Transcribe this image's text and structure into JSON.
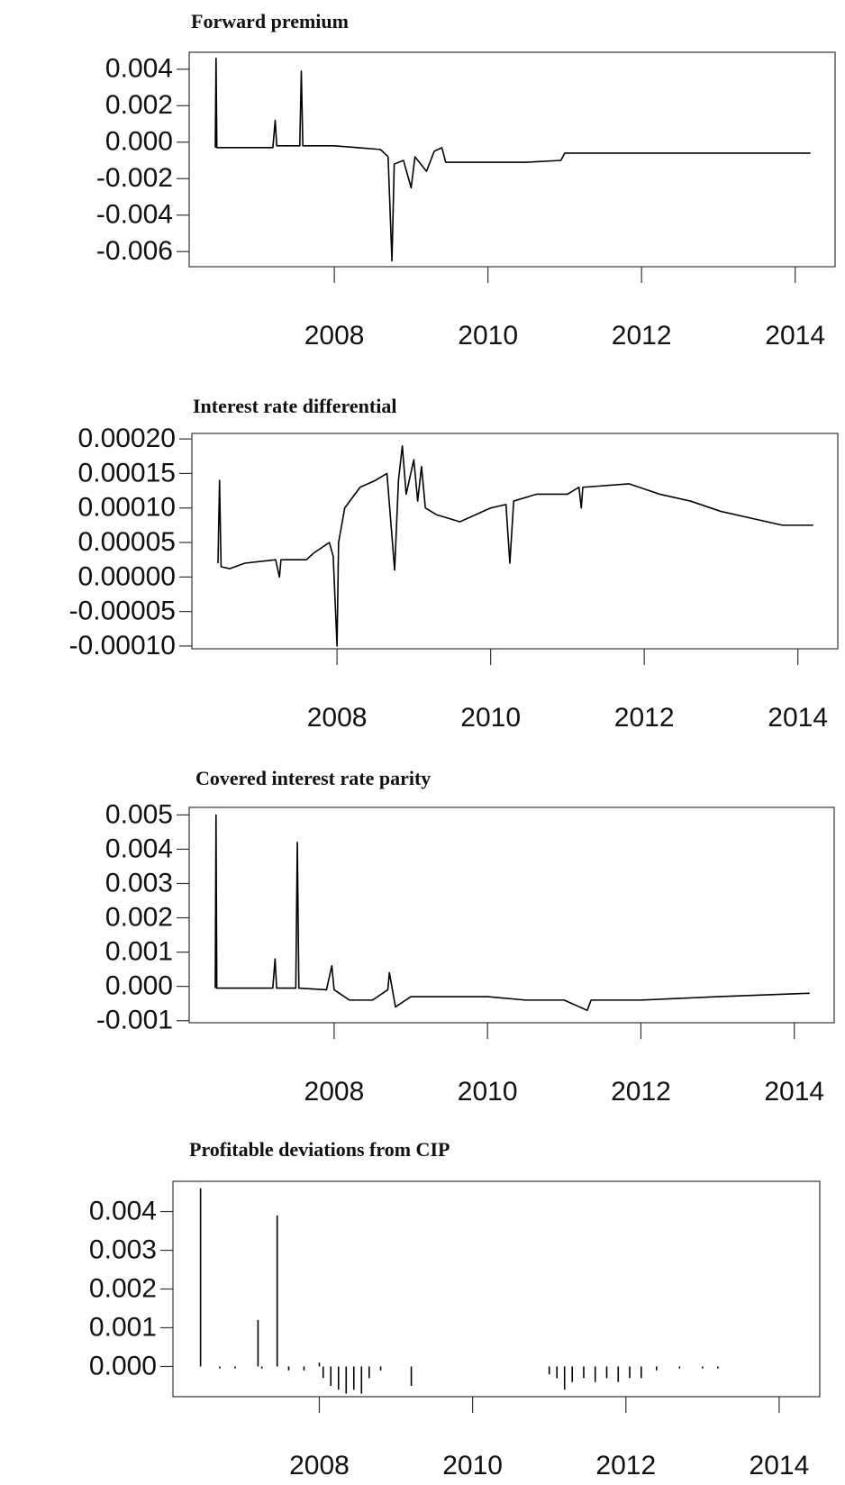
{
  "chart_data": [
    {
      "type": "line",
      "title": "Forward premium",
      "color": "#000000",
      "x": [
        2006.45,
        2006.46,
        2006.47,
        2006.8,
        2007.2,
        2007.23,
        2007.25,
        2007.55,
        2007.57,
        2007.59,
        2008.0,
        2008.3,
        2008.6,
        2008.7,
        2008.75,
        2008.78,
        2008.9,
        2009.0,
        2009.05,
        2009.2,
        2009.3,
        2009.4,
        2009.45,
        2010.0,
        2010.5,
        2010.95,
        2011.0,
        2012.0,
        2013.0,
        2014.2
      ],
      "values": [
        -0.0003,
        0.0046,
        -0.0003,
        -0.0003,
        -0.0003,
        0.0012,
        -0.0002,
        -0.0002,
        0.0039,
        -0.0002,
        -0.0002,
        -0.0003,
        -0.0004,
        -0.0008,
        -0.0065,
        -0.0012,
        -0.001,
        -0.0025,
        -0.0008,
        -0.0016,
        -0.0005,
        -0.0003,
        -0.0011,
        -0.0011,
        -0.0011,
        -0.001,
        -0.0006,
        -0.0006,
        -0.0006,
        -0.0006
      ],
      "xlim": [
        2006.11,
        2014.52
      ],
      "xticks": [
        2008,
        2010,
        2012,
        2014
      ],
      "ylim": [
        -0.00683,
        0.00493
      ],
      "yticks": [
        {
          "value": -0.006,
          "label": "-0.006"
        },
        {
          "value": -0.004,
          "label": "-0.004"
        },
        {
          "value": -0.002,
          "label": "-0.002"
        },
        {
          "value": 0,
          "label": "0.000"
        },
        0.002,
        0.004
      ]
    },
    {
      "type": "line",
      "title": "Interest rate differential",
      "color": "#000000",
      "x": [
        2006.45,
        2006.47,
        2006.49,
        2006.6,
        2006.8,
        2007.2,
        2007.25,
        2007.27,
        2007.6,
        2007.7,
        2007.9,
        2007.95,
        2008.0,
        2008.02,
        2008.1,
        2008.3,
        2008.5,
        2008.65,
        2008.7,
        2008.75,
        2008.8,
        2008.85,
        2008.9,
        2009.0,
        2009.05,
        2009.1,
        2009.15,
        2009.3,
        2009.6,
        2009.8,
        2010.0,
        2010.2,
        2010.25,
        2010.3,
        2010.6,
        2011.0,
        2011.15,
        2011.18,
        2011.2,
        2011.8,
        2012.2,
        2012.6,
        2013.0,
        2013.4,
        2013.8,
        2014.2
      ],
      "values": [
        2e-05,
        0.00014,
        1.5e-05,
        1.2e-05,
        2e-05,
        2.5e-05,
        0,
        2.5e-05,
        2.5e-05,
        3.5e-05,
        5e-05,
        3e-05,
        -0.0001,
        5e-05,
        0.0001,
        0.00013,
        0.00014,
        0.00015,
        8e-05,
        1e-05,
        0.00014,
        0.00019,
        0.00012,
        0.00017,
        0.00011,
        0.00016,
        0.0001,
        9e-05,
        8e-05,
        9e-05,
        0.0001,
        0.000105,
        2e-05,
        0.00011,
        0.00012,
        0.00012,
        0.00013,
        0.0001,
        0.00013,
        0.000135,
        0.00012,
        0.00011,
        9.5e-05,
        8.5e-05,
        7.5e-05,
        7.5e-05
      ],
      "xlim": [
        2006.11,
        2014.52
      ],
      "xticks": [
        2008,
        2010,
        2012,
        2014
      ],
      "ylim": [
        -0.000104,
        0.000208
      ],
      "yticks": [
        {
          "value": -0.0001,
          "label": "-0.00010"
        },
        -5e-05,
        {
          "value": 0,
          "label": "0.00000"
        },
        5e-05,
        {
          "value": 0.0001,
          "label": "0.00010"
        },
        0.00015,
        {
          "value": 0.0002,
          "label": "0.00020"
        }
      ]
    },
    {
      "type": "line",
      "title": "Covered interest rate parity",
      "color": "#000000",
      "x": [
        2006.45,
        2006.46,
        2006.47,
        2007.0,
        2007.2,
        2007.23,
        2007.25,
        2007.5,
        2007.52,
        2007.54,
        2007.9,
        2007.97,
        2008.0,
        2008.2,
        2008.5,
        2008.7,
        2008.72,
        2008.8,
        2009.0,
        2009.5,
        2010.0,
        2010.5,
        2011.0,
        2011.3,
        2011.35,
        2012.0,
        2013.0,
        2014.2
      ],
      "values": [
        -5e-05,
        0.005,
        -5e-05,
        -5e-05,
        -5e-05,
        0.0008,
        -5e-05,
        -5e-05,
        0.0042,
        -5e-05,
        -0.0001,
        0.0006,
        -0.0001,
        -0.0004,
        -0.0004,
        -0.0001,
        0.0004,
        -0.0006,
        -0.0003,
        -0.0003,
        -0.0003,
        -0.0004,
        -0.0004,
        -0.0007,
        -0.0004,
        -0.0004,
        -0.0003,
        -0.0002
      ],
      "xlim": [
        2006.11,
        2014.52
      ],
      "xticks": [
        2008,
        2010,
        2012,
        2014
      ],
      "ylim": [
        -0.00106,
        0.00522
      ],
      "yticks": [
        -0.001,
        {
          "value": 0,
          "label": "0.000"
        },
        0.001,
        0.002,
        0.003,
        0.004,
        0.005
      ]
    },
    {
      "type": "needle",
      "title": "Profitable deviations from CIP",
      "color": "#000000",
      "x": [
        2006.45,
        2006.7,
        2006.9,
        2007.2,
        2007.25,
        2007.45,
        2007.6,
        2007.8,
        2008.0,
        2008.05,
        2008.15,
        2008.25,
        2008.35,
        2008.45,
        2008.55,
        2008.65,
        2008.8,
        2009.2,
        2011.0,
        2011.1,
        2011.2,
        2011.3,
        2011.45,
        2011.6,
        2011.75,
        2011.9,
        2012.05,
        2012.2,
        2012.4,
        2012.7,
        2013.0,
        2013.2
      ],
      "values": [
        0.0046,
        -5e-05,
        -5e-05,
        0.0012,
        -5e-05,
        0.0039,
        -0.0001,
        -0.0001,
        0.0001,
        -0.0003,
        -0.0005,
        -0.0006,
        -0.0007,
        -0.0006,
        -0.0007,
        -0.0003,
        -0.0001,
        -0.0005,
        -0.0002,
        -0.0003,
        -0.0006,
        -0.0004,
        -0.0003,
        -0.0004,
        -0.0003,
        -0.0004,
        -0.0003,
        -0.0003,
        -0.0001,
        -5e-05,
        -5e-05,
        -5e-05
      ],
      "xlim": [
        2006.09,
        2014.53
      ],
      "xticks": [
        2008,
        2010,
        2012,
        2014
      ],
      "ylim": [
        -0.00078,
        0.00478
      ],
      "yticks": [
        {
          "value": 0,
          "label": "0.000"
        },
        0.001,
        0.002,
        0.003,
        0.004
      ]
    }
  ]
}
